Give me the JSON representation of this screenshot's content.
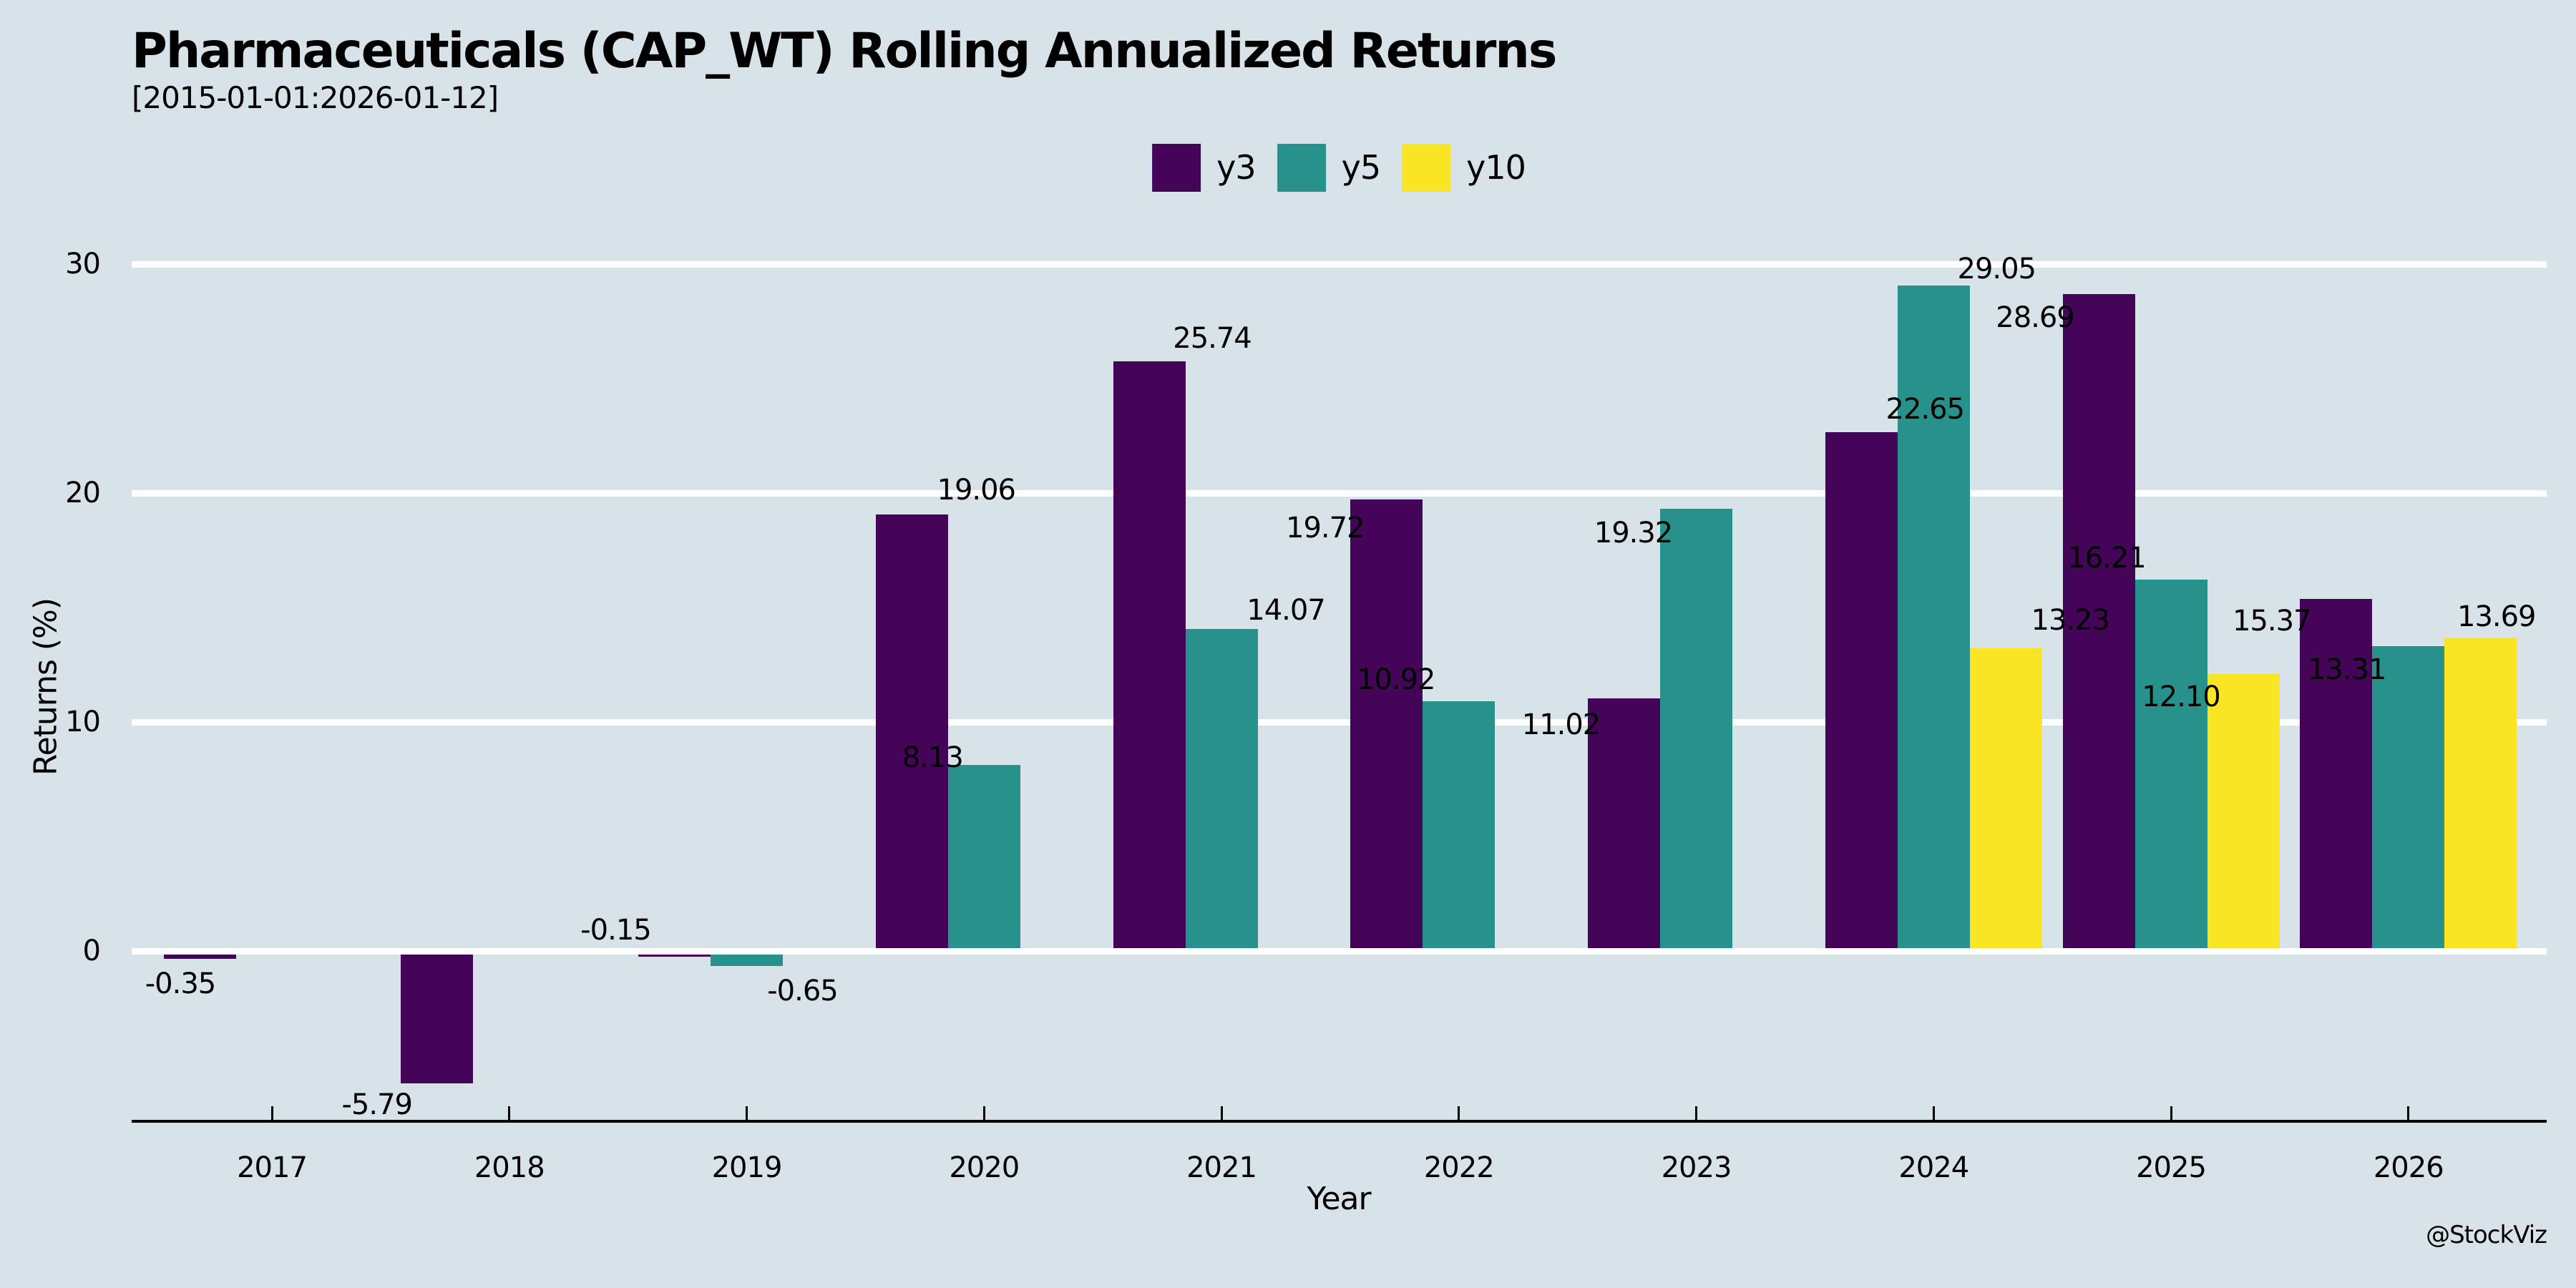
{
  "watermark": "@StockViz",
  "colors": {
    "background": "#d7e3e9",
    "gridline": "#ffffff",
    "axis": "#000000",
    "text": "#000000",
    "y3": "#440457",
    "y5": "#26928b",
    "y10": "#fae525"
  },
  "chart_data": {
    "type": "bar",
    "title": "Pharmaceuticals (CAP_WT) Rolling Annualized Returns",
    "subtitle": "[2015-01-01:2026-01-12]",
    "xlabel": "Year",
    "ylabel": "Returns (%)",
    "categories": [
      "2017",
      "2018",
      "2019",
      "2020",
      "2021",
      "2022",
      "2023",
      "2024",
      "2025",
      "2026"
    ],
    "yticks": [
      0,
      10,
      20,
      30
    ],
    "ylim": [
      -7.4,
      31
    ],
    "grid": "horizontal-white",
    "legend_position": "top-center",
    "series": [
      {
        "name": "y3",
        "color": "#440457",
        "points": [
          {
            "x": "2017",
            "v": -0.35,
            "dx": -27,
            "dy": 35
          },
          {
            "x": "2018",
            "v": -5.79,
            "dx": -84,
            "dy": 30
          },
          {
            "x": "2019",
            "v": -0.15,
            "dx": -82,
            "dy": -34
          },
          {
            "x": "2020",
            "v": 19.06,
            "dx": 90,
            "dy": -34
          },
          {
            "x": "2021",
            "v": 25.74,
            "dx": 88,
            "dy": -32
          },
          {
            "x": "2022",
            "v": 19.72,
            "dx": -86,
            "dy": 40
          },
          {
            "x": "2023",
            "v": 11.02,
            "dx": -88,
            "dy": 37
          },
          {
            "x": "2024",
            "v": 22.65,
            "dx": 89,
            "dy": -32
          },
          {
            "x": "2025",
            "v": 28.69,
            "dx": -89,
            "dy": 33
          },
          {
            "x": "2026",
            "v": 15.37,
            "dx": -90,
            "dy": 31
          }
        ]
      },
      {
        "name": "y5",
        "color": "#26928b",
        "points": [
          {
            "x": "2019",
            "v": -0.65,
            "dx": 78,
            "dy": 35
          },
          {
            "x": "2020",
            "v": 8.13,
            "dx": -72,
            "dy": -10
          },
          {
            "x": "2021",
            "v": 14.07,
            "dx": 90,
            "dy": -26
          },
          {
            "x": "2022",
            "v": 10.92,
            "dx": -88,
            "dy": -30
          },
          {
            "x": "2023",
            "v": 19.32,
            "dx": -88,
            "dy": 34
          },
          {
            "x": "2024",
            "v": 29.05,
            "dx": 88,
            "dy": -23
          },
          {
            "x": "2025",
            "v": 16.21,
            "dx": -90,
            "dy": -30
          },
          {
            "x": "2026",
            "v": 13.31,
            "dx": -86,
            "dy": 33
          }
        ]
      },
      {
        "name": "y10",
        "color": "#fae525",
        "points": [
          {
            "x": "2024",
            "v": 13.23,
            "dx": 90,
            "dy": -39
          },
          {
            "x": "2025",
            "v": 12.1,
            "dx": -87,
            "dy": 32
          },
          {
            "x": "2026",
            "v": 13.69,
            "dx": 22,
            "dy": -29
          }
        ]
      }
    ]
  }
}
